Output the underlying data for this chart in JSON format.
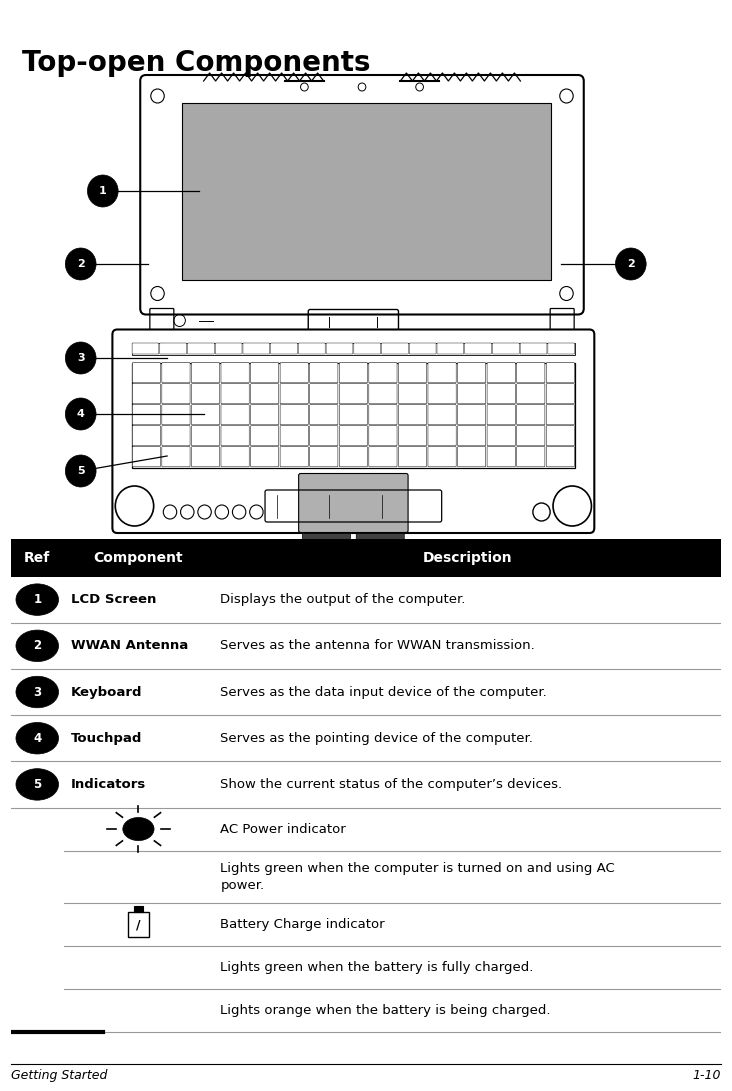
{
  "title": "Top-open Components",
  "title_fontsize": 20,
  "bg_color": "#ffffff",
  "footer_left": "Getting Started",
  "footer_right": "1-10",
  "table_rows": [
    {
      "ref_num": "1",
      "component": "LCD Screen",
      "description": "Displays the output of the computer."
    },
    {
      "ref_num": "2",
      "component": "WWAN Antenna",
      "description": "Serves as the antenna for WWAN transmission."
    },
    {
      "ref_num": "3",
      "component": "Keyboard",
      "description": "Serves as the data input device of the computer."
    },
    {
      "ref_num": "4",
      "component": "Touchpad",
      "description": "Serves as the pointing device of the computer."
    },
    {
      "ref_num": "5",
      "component": "Indicators",
      "description": "Show the current status of the computer’s devices."
    }
  ],
  "text_color": "#000000",
  "text_fontsize": 9.5,
  "component_fontsize": 9.5
}
